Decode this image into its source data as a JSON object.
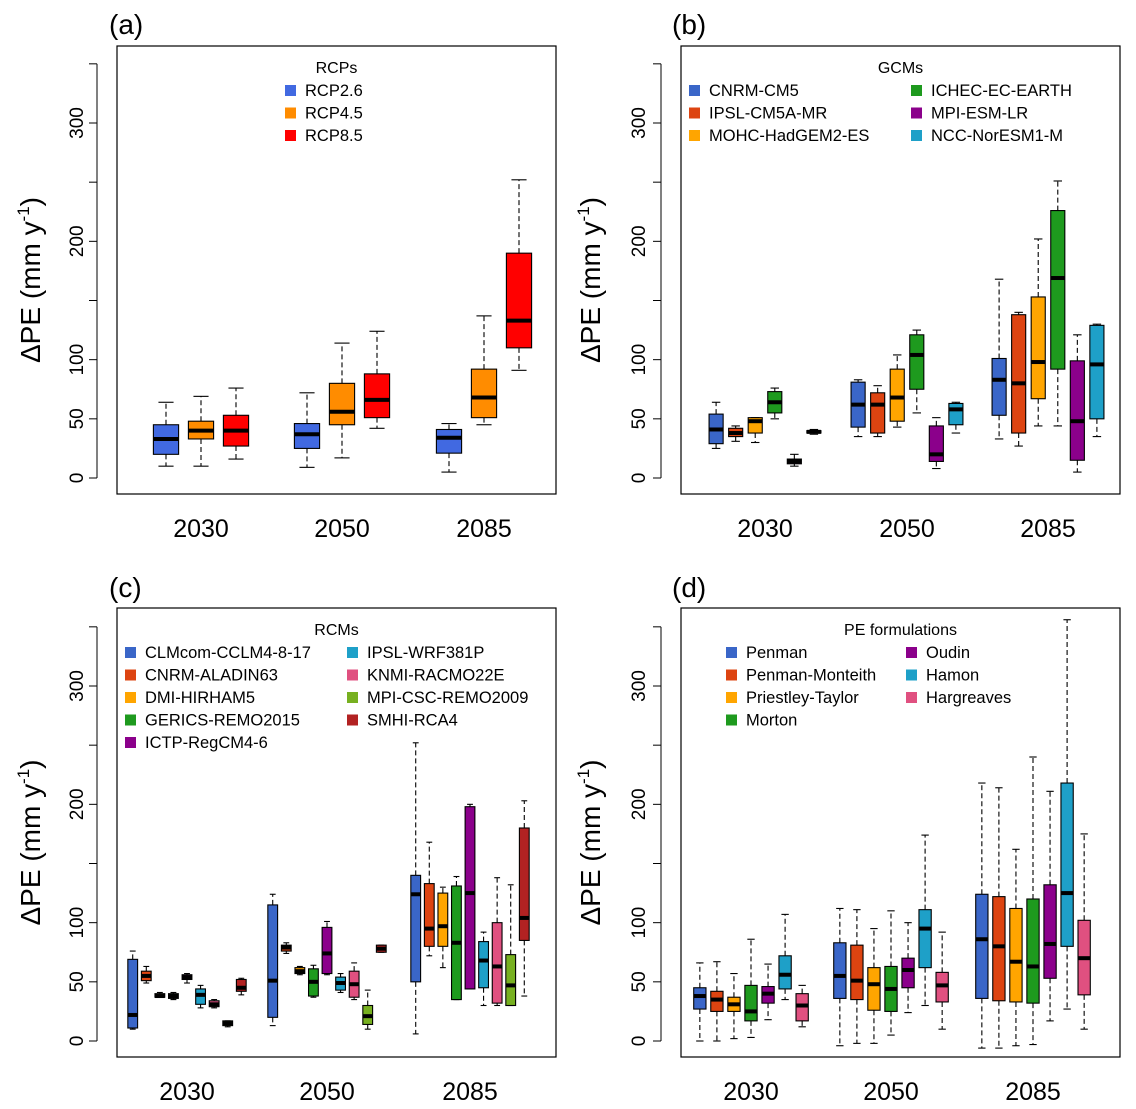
{
  "figure": {
    "ylabel_main": "ΔPE (mm y",
    "ylabel_sup": "-1",
    "ylabel_close": ")",
    "period_labels": [
      "2030",
      "2050",
      "2085"
    ],
    "y_ticks": [
      0,
      50,
      100,
      200,
      300
    ]
  },
  "chart_data": [
    {
      "panel": "(a)",
      "type": "box",
      "legend_title": "RCPs",
      "legend_columns": [
        [
          "RCP2.6",
          "RCP4.5",
          "RCP8.5"
        ]
      ],
      "series": [
        {
          "name": "RCP2.6",
          "color": "#4169E1"
        },
        {
          "name": "RCP4.5",
          "color": "#FF8C00"
        },
        {
          "name": "RCP8.5",
          "color": "#FF0000"
        }
      ],
      "periods": [
        "2030",
        "2050",
        "2085"
      ],
      "boxes": [
        [
          [
            10,
            20,
            33,
            45,
            64
          ],
          [
            10,
            33,
            40,
            48,
            69
          ],
          [
            16,
            27,
            40,
            53,
            76
          ]
        ],
        [
          [
            9,
            25,
            37,
            46,
            72
          ],
          [
            17,
            45,
            56,
            80,
            114
          ],
          [
            42,
            51,
            66,
            88,
            124
          ]
        ],
        [
          [
            5,
            21,
            34,
            41,
            46
          ],
          [
            45,
            51,
            68,
            92,
            137
          ],
          [
            91,
            110,
            133,
            190,
            252
          ]
        ]
      ]
    },
    {
      "panel": "(b)",
      "type": "box",
      "legend_title": "GCMs",
      "legend_columns": [
        [
          "CNRM-CM5",
          "IPSL-CM5A-MR",
          "MOHC-HadGEM2-ES"
        ],
        [
          "ICHEC-EC-EARTH",
          "MPI-ESM-LR",
          "NCC-NorESM1-M"
        ]
      ],
      "series": [
        {
          "name": "CNRM-CM5",
          "color": "#3A66C8"
        },
        {
          "name": "IPSL-CM5A-MR",
          "color": "#DD4411"
        },
        {
          "name": "MOHC-HadGEM2-ES",
          "color": "#FFA500"
        },
        {
          "name": "ICHEC-EC-EARTH",
          "color": "#1E9A1E"
        },
        {
          "name": "MPI-ESM-LR",
          "color": "#8B008B"
        },
        {
          "name": "NCC-NorESM1-M",
          "color": "#1EA0C8"
        }
      ],
      "periods": [
        "2030",
        "2050",
        "2085"
      ],
      "boxes": [
        [
          [
            25,
            29,
            41,
            54,
            64
          ],
          [
            31,
            35,
            38,
            42,
            44
          ],
          [
            30,
            38,
            48,
            51,
            51
          ],
          [
            50,
            55,
            64,
            73,
            76
          ],
          [
            10,
            12,
            14,
            16,
            20
          ],
          [
            37,
            38,
            39,
            40,
            41
          ]
        ],
        [
          [
            35,
            43,
            62,
            81,
            83
          ],
          [
            35,
            38,
            62,
            72,
            78
          ],
          [
            43,
            48,
            68,
            92,
            104
          ],
          [
            55,
            75,
            104,
            121,
            125
          ],
          [
            8,
            14,
            20,
            44,
            51
          ],
          [
            38,
            45,
            58,
            63,
            64
          ]
        ],
        [
          [
            33,
            53,
            83,
            101,
            168
          ],
          [
            27,
            38,
            80,
            138,
            140
          ],
          [
            44,
            67,
            98,
            153,
            202
          ],
          [
            44,
            92,
            169,
            226,
            251
          ],
          [
            5,
            15,
            48,
            99,
            121
          ],
          [
            35,
            50,
            96,
            129,
            130
          ]
        ]
      ]
    },
    {
      "panel": "(c)",
      "type": "box",
      "legend_title": "RCMs",
      "legend_columns": [
        [
          "CLMcom-CCLM4-8-17",
          "CNRM-ALADIN63",
          "DMI-HIRHAM5",
          "GERICS-REMO2015",
          "ICTP-RegCM4-6"
        ],
        [
          "IPSL-WRF381P",
          "KNMI-RACMO22E",
          "MPI-CSC-REMO2009",
          "SMHI-RCA4"
        ]
      ],
      "series": [
        {
          "name": "CLMcom-CCLM4-8-17",
          "color": "#3A66C8"
        },
        {
          "name": "CNRM-ALADIN63",
          "color": "#DD4411"
        },
        {
          "name": "DMI-HIRHAM5",
          "color": "#FFA500"
        },
        {
          "name": "GERICS-REMO2015",
          "color": "#1E9A1E"
        },
        {
          "name": "ICTP-RegCM4-6",
          "color": "#8B008B"
        },
        {
          "name": "IPSL-WRF381P",
          "color": "#1EA0C8"
        },
        {
          "name": "KNMI-RACMO22E",
          "color": "#E05080"
        },
        {
          "name": "MPI-CSC-REMO2009",
          "color": "#77B020"
        },
        {
          "name": "SMHI-RCA4",
          "color": "#B22222"
        }
      ],
      "periods": [
        "2030",
        "2050",
        "2085"
      ],
      "boxes": [
        [
          [
            10,
            11,
            22,
            69,
            76
          ],
          [
            49,
            51,
            55,
            59,
            63
          ],
          [
            37,
            37,
            38,
            40,
            41
          ],
          [
            35,
            36,
            38,
            40,
            41
          ],
          [
            49,
            52,
            54,
            56,
            57
          ],
          [
            28,
            31,
            39,
            44,
            47
          ],
          [
            28,
            29,
            31,
            34,
            35
          ],
          [
            12,
            13,
            15,
            17,
            17
          ],
          [
            39,
            42,
            45,
            52,
            53
          ]
        ],
        [
          [
            13,
            20,
            51,
            115,
            124
          ],
          [
            74,
            76,
            79,
            81,
            83
          ],
          [
            56,
            57,
            59,
            62,
            63
          ],
          [
            37,
            38,
            50,
            61,
            64
          ],
          [
            56,
            57,
            74,
            96,
            101
          ],
          [
            41,
            43,
            49,
            54,
            57
          ],
          [
            35,
            37,
            48,
            59,
            66
          ],
          [
            10,
            14,
            21,
            30,
            43
          ],
          [
            75,
            75,
            78,
            81,
            81
          ]
        ],
        [
          [
            6,
            50,
            124,
            140,
            252
          ],
          [
            72,
            80,
            95,
            133,
            168
          ],
          [
            62,
            80,
            97,
            125,
            130
          ],
          [
            35,
            35,
            83,
            131,
            139
          ],
          [
            44,
            44,
            125,
            198,
            200
          ],
          [
            30,
            45,
            68,
            84,
            92
          ],
          [
            30,
            32,
            63,
            100,
            138
          ],
          [
            30,
            30,
            47,
            73,
            132
          ],
          [
            38,
            85,
            104,
            180,
            203
          ]
        ]
      ]
    },
    {
      "panel": "(d)",
      "type": "box",
      "legend_title": "PE formulations",
      "legend_columns": [
        [
          "Penman",
          "Penman-Monteith",
          "Priestley-Taylor",
          "Morton"
        ],
        [
          "Oudin",
          "Hamon",
          "Hargreaves"
        ]
      ],
      "series": [
        {
          "name": "Penman",
          "color": "#3A66C8"
        },
        {
          "name": "Penman-Monteith",
          "color": "#DD4411"
        },
        {
          "name": "Priestley-Taylor",
          "color": "#FFA500"
        },
        {
          "name": "Morton",
          "color": "#1E9A1E"
        },
        {
          "name": "Oudin",
          "color": "#8B008B"
        },
        {
          "name": "Hamon",
          "color": "#1EA0C8"
        },
        {
          "name": "Hargreaves",
          "color": "#E05080"
        }
      ],
      "periods": [
        "2030",
        "2050",
        "2085"
      ],
      "boxes": [
        [
          [
            0,
            27,
            38,
            45,
            66
          ],
          [
            0,
            25,
            35,
            42,
            67
          ],
          [
            2,
            25,
            31,
            37,
            57
          ],
          [
            3,
            17,
            25,
            47,
            86
          ],
          [
            18,
            32,
            40,
            46,
            65
          ],
          [
            35,
            44,
            56,
            72,
            107
          ],
          [
            12,
            17,
            30,
            40,
            47
          ]
        ],
        [
          [
            -4,
            36,
            55,
            83,
            112
          ],
          [
            -2,
            35,
            51,
            81,
            111
          ],
          [
            -2,
            26,
            48,
            62,
            95
          ],
          [
            5,
            25,
            44,
            63,
            110
          ],
          [
            24,
            45,
            60,
            70,
            100
          ],
          [
            30,
            62,
            95,
            111,
            174
          ],
          [
            10,
            33,
            47,
            58,
            92
          ]
        ],
        [
          [
            -6,
            36,
            86,
            124,
            218
          ],
          [
            -6,
            34,
            80,
            122,
            214
          ],
          [
            -4,
            33,
            67,
            112,
            162
          ],
          [
            -3,
            32,
            63,
            120,
            240
          ],
          [
            17,
            53,
            82,
            132,
            211
          ],
          [
            27,
            80,
            125,
            218,
            356
          ],
          [
            10,
            39,
            70,
            102,
            175
          ]
        ]
      ]
    }
  ]
}
